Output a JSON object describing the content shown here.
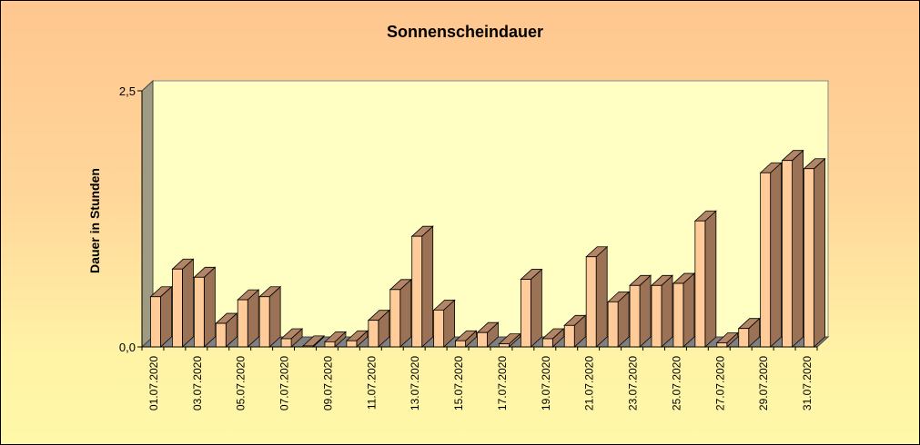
{
  "chart_data": {
    "type": "bar",
    "title": "Sonnenscheindauer",
    "xlabel": "",
    "ylabel": "Dauer in Stunden",
    "ylim": [
      0,
      2.5
    ],
    "y_ticks": [
      "0,0",
      "2,5"
    ],
    "grid": false,
    "legend": "none",
    "categories": [
      "01.07.2020",
      "02.07.2020",
      "03.07.2020",
      "04.07.2020",
      "05.07.2020",
      "06.07.2020",
      "07.07.2020",
      "08.07.2020",
      "09.07.2020",
      "10.07.2020",
      "11.07.2020",
      "12.07.2020",
      "13.07.2020",
      "14.07.2020",
      "15.07.2020",
      "16.07.2020",
      "17.07.2020",
      "18.07.2020",
      "19.07.2020",
      "20.07.2020",
      "21.07.2020",
      "22.07.2020",
      "23.07.2020",
      "24.07.2020",
      "25.07.2020",
      "26.07.2020",
      "27.07.2020",
      "28.07.2020",
      "29.07.2020",
      "30.07.2020",
      "31.07.2020"
    ],
    "category_labels_shown": [
      "01.07.2020",
      "03.07.2020",
      "05.07.2020",
      "07.07.2020",
      "09.07.2020",
      "11.07.2020",
      "13.07.2020",
      "15.07.2020",
      "17.07.2020",
      "19.07.2020",
      "21.07.2020",
      "23.07.2020",
      "25.07.2020",
      "27.07.2020",
      "29.07.2020",
      "31.07.2020"
    ],
    "values": [
      0.49,
      0.76,
      0.68,
      0.23,
      0.46,
      0.49,
      0.08,
      0.01,
      0.05,
      0.06,
      0.26,
      0.56,
      1.08,
      0.36,
      0.06,
      0.14,
      0.03,
      0.66,
      0.08,
      0.21,
      0.88,
      0.44,
      0.6,
      0.6,
      0.62,
      1.23,
      0.04,
      0.18,
      1.7,
      1.82,
      1.74
    ],
    "colors": {
      "bar_front": "#ffcc99",
      "bar_side": "#9c7256",
      "bar_top": "#b38567",
      "bar_edge": "#000000",
      "plot_back": "#ffffc4",
      "plot_wall": "#9e9b82",
      "plot_floor": "#808080"
    }
  }
}
